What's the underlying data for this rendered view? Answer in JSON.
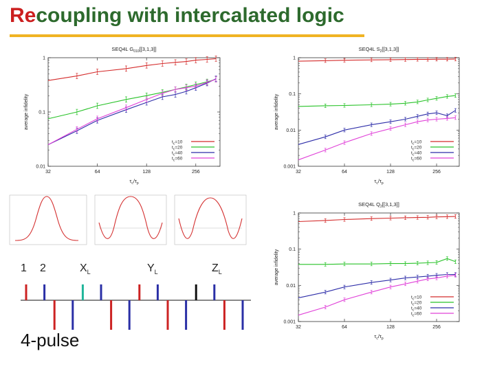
{
  "slide": {
    "title_red": "Re",
    "title_rest": "coupling with intercalated logic",
    "pulse_caption": "4-pulse"
  },
  "pulse_labels": [
    {
      "text": "1",
      "sub": ""
    },
    {
      "text": "2",
      "sub": ""
    },
    {
      "text": "X",
      "sub": "L"
    },
    {
      "text": "Y",
      "sub": "L"
    },
    {
      "text": "Z",
      "sub": "L"
    }
  ],
  "pulse_sequence": {
    "colors": {
      "up_red": "#cc2222",
      "up_blue": "#2a2fa6",
      "teal": "#1fb59a",
      "black": "#111111"
    },
    "pulses": [
      {
        "pos": "up",
        "color": "red"
      },
      {
        "pos": "up",
        "color": "blue"
      },
      {
        "pos": "down",
        "color": "red"
      },
      {
        "pos": "down",
        "color": "blue"
      },
      {
        "pos": "up",
        "color": "teal"
      },
      {
        "pos": "up",
        "color": "blue"
      },
      {
        "pos": "down",
        "color": "red"
      },
      {
        "pos": "down",
        "color": "blue"
      },
      {
        "pos": "up",
        "color": "red"
      },
      {
        "pos": "up",
        "color": "blue"
      },
      {
        "pos": "down",
        "color": "red"
      },
      {
        "pos": "down",
        "color": "blue"
      },
      {
        "pos": "up",
        "color": "black"
      },
      {
        "pos": "up",
        "color": "blue"
      },
      {
        "pos": "down",
        "color": "red"
      },
      {
        "pos": "down",
        "color": "blue"
      }
    ]
  },
  "chart_data": [
    {
      "type": "line",
      "title": "SEQ4L G",
      "title_sub": "010",
      "title_suffix": " [[3,1,3]]",
      "xlabel": "τ",
      "xlabel_sub1": "c",
      "xlabel_mid": "/τ",
      "xlabel_sub2": "p",
      "ylabel": "average infidelity",
      "xscale": "log2",
      "yscale": "log",
      "xlim": [
        32,
        360
      ],
      "ylim": [
        0.01,
        1
      ],
      "xticks": [
        32,
        64,
        128,
        256
      ],
      "yticks": [
        0.01,
        0.1,
        1
      ],
      "ytick_labels": [
        "0.01",
        "0.1",
        "1"
      ],
      "x": [
        32,
        48,
        64,
        96,
        128,
        160,
        192,
        224,
        256,
        300,
        340
      ],
      "series": [
        {
          "name": "t",
          "name_sub": "c",
          "name_suffix": "=10",
          "color": "#d42a2a",
          "values": [
            0.38,
            0.46,
            0.55,
            0.63,
            0.72,
            0.78,
            0.82,
            0.85,
            0.9,
            0.93,
            0.96
          ]
        },
        {
          "name": "t",
          "name_sub": "c",
          "name_suffix": "=20",
          "color": "#27c227",
          "values": [
            0.075,
            0.1,
            0.13,
            0.17,
            0.2,
            0.23,
            0.26,
            0.29,
            0.32,
            0.36,
            0.4
          ]
        },
        {
          "name": "t",
          "name_sub": "c",
          "name_suffix": "=40",
          "color": "#2c2ca8",
          "values": [
            0.025,
            0.045,
            0.07,
            0.11,
            0.15,
            0.19,
            0.21,
            0.24,
            0.28,
            0.34,
            0.41
          ]
        },
        {
          "name": "t",
          "name_sub": "c",
          "name_suffix": "=60",
          "color": "#e040d8",
          "values": [
            0.025,
            0.048,
            0.075,
            0.12,
            0.17,
            0.22,
            0.26,
            0.28,
            0.3,
            0.35,
            0.4
          ]
        }
      ]
    },
    {
      "type": "line",
      "title": "SEQ4L S",
      "title_sub": "2",
      "title_suffix": " [[3,1,3]]",
      "xlabel": "τ",
      "xlabel_sub1": "c",
      "xlabel_mid": "/τ",
      "xlabel_sub2": "p",
      "ylabel": "average infidelity",
      "xscale": "log2",
      "yscale": "log",
      "xlim": [
        32,
        360
      ],
      "ylim": [
        0.001,
        1
      ],
      "xticks": [
        32,
        64,
        128,
        256
      ],
      "yticks": [
        0.001,
        0.01,
        0.1,
        1
      ],
      "ytick_labels": [
        "0.001",
        "0.01",
        "0.1",
        "1"
      ],
      "x": [
        32,
        48,
        64,
        96,
        128,
        160,
        192,
        224,
        256,
        300,
        340
      ],
      "series": [
        {
          "name": "t",
          "name_sub": "c",
          "name_suffix": "=10",
          "color": "#d42a2a",
          "values": [
            0.8,
            0.83,
            0.85,
            0.87,
            0.88,
            0.89,
            0.9,
            0.9,
            0.91,
            0.91,
            0.92
          ]
        },
        {
          "name": "t",
          "name_sub": "c",
          "name_suffix": "=20",
          "color": "#27c227",
          "values": [
            0.045,
            0.047,
            0.048,
            0.05,
            0.052,
            0.055,
            0.06,
            0.068,
            0.075,
            0.085,
            0.09
          ]
        },
        {
          "name": "t",
          "name_sub": "c",
          "name_suffix": "=40",
          "color": "#2c2ca8",
          "values": [
            0.004,
            0.0065,
            0.01,
            0.014,
            0.017,
            0.02,
            0.024,
            0.028,
            0.03,
            0.025,
            0.035
          ]
        },
        {
          "name": "t",
          "name_sub": "c",
          "name_suffix": "=60",
          "color": "#e040d8",
          "values": [
            0.0015,
            0.0028,
            0.0045,
            0.008,
            0.011,
            0.014,
            0.017,
            0.019,
            0.02,
            0.021,
            0.022
          ]
        }
      ]
    },
    {
      "type": "line",
      "title": "SEQ4L Q",
      "title_sub": "2",
      "title_suffix": " [[3,1,3]]",
      "xlabel": "τ",
      "xlabel_sub1": "c",
      "xlabel_mid": "/τ",
      "xlabel_sub2": "p",
      "ylabel": "average infidelity",
      "xscale": "log2",
      "yscale": "log",
      "xlim": [
        32,
        360
      ],
      "ylim": [
        0.001,
        1
      ],
      "xticks": [
        32,
        64,
        128,
        256
      ],
      "yticks": [
        0.001,
        0.01,
        0.1,
        1
      ],
      "ytick_labels": [
        "0.001",
        "0.01",
        "0.1",
        "1"
      ],
      "x": [
        32,
        48,
        64,
        96,
        128,
        160,
        192,
        224,
        256,
        300,
        340
      ],
      "series": [
        {
          "name": "t",
          "name_sub": "c",
          "name_suffix": "=10",
          "color": "#d42a2a",
          "values": [
            0.58,
            0.62,
            0.66,
            0.7,
            0.72,
            0.74,
            0.75,
            0.76,
            0.78,
            0.79,
            0.8
          ]
        },
        {
          "name": "t",
          "name_sub": "c",
          "name_suffix": "=20",
          "color": "#27c227",
          "values": [
            0.038,
            0.038,
            0.039,
            0.039,
            0.04,
            0.04,
            0.041,
            0.042,
            0.043,
            0.055,
            0.045
          ]
        },
        {
          "name": "t",
          "name_sub": "c",
          "name_suffix": "=40",
          "color": "#2c2ca8",
          "values": [
            0.0045,
            0.0065,
            0.009,
            0.012,
            0.014,
            0.016,
            0.017,
            0.018,
            0.019,
            0.02,
            0.02
          ]
        },
        {
          "name": "t",
          "name_sub": "c",
          "name_suffix": "=60",
          "color": "#e040d8",
          "values": [
            0.0015,
            0.0025,
            0.004,
            0.0065,
            0.009,
            0.011,
            0.013,
            0.015,
            0.016,
            0.018,
            0.019
          ]
        }
      ]
    }
  ]
}
